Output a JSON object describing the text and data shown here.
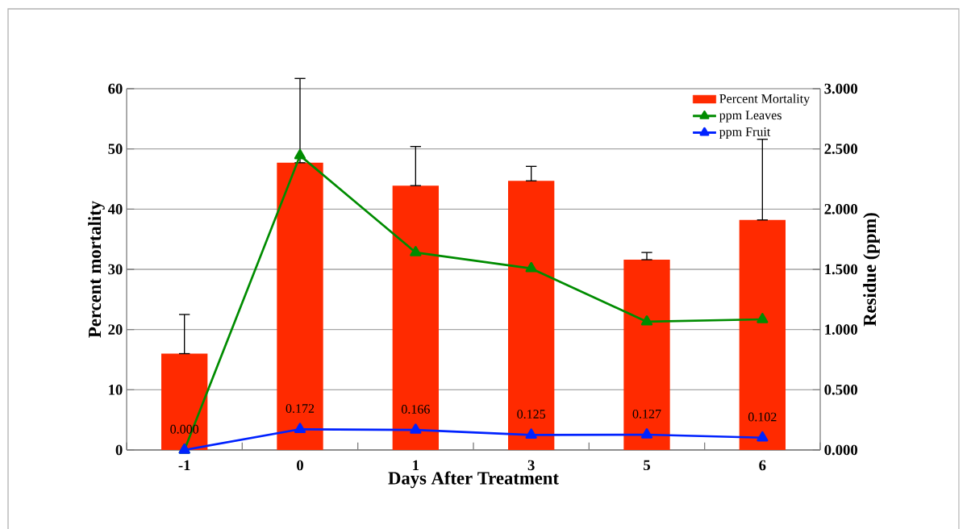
{
  "chart_data": {
    "type": "bar",
    "xlabel": "Days After Treatment",
    "ylabel": "Percent mortality",
    "y2label": "Residue  (ppm)",
    "categories": [
      "-1",
      "0",
      "1",
      "3",
      "5",
      "6"
    ],
    "series": [
      {
        "name": "Percent  Mortality",
        "color": "#ff2a00",
        "values": [
          16,
          47.7,
          43.9,
          44.7,
          31.6,
          38.2
        ],
        "errors": [
          [
            16,
            22.5
          ],
          [
            47.7,
            61.7
          ],
          [
            43.9,
            50.4
          ],
          [
            44.7,
            47.1
          ],
          [
            31.6,
            32.8
          ],
          [
            38.2,
            51.6
          ]
        ]
      },
      {
        "name": "ppm Leaves",
        "type": "line",
        "axis": "y2",
        "color": "#008c00",
        "values": [
          0,
          2.445,
          1.64,
          1.507,
          1.065,
          1.085
        ]
      },
      {
        "name": "ppm Fruit",
        "type": "line",
        "axis": "y2",
        "color": "#0022ff",
        "values": [
          0,
          0.172,
          0.166,
          0.125,
          0.127,
          0.102
        ],
        "value_labels": [
          "0.000",
          "0.172",
          "0.166",
          "0.125",
          "0.127",
          "0.102"
        ]
      }
    ],
    "ylim": [
      0,
      60
    ],
    "yticks": [
      0,
      10,
      20,
      30,
      40,
      50,
      60
    ],
    "y2lim": [
      0,
      3
    ],
    "y2ticks": [
      {
        "value": 0,
        "label": "0.000"
      },
      {
        "value": 0.5,
        "label": "0.500"
      },
      {
        "value": 1,
        "label": "1.000"
      },
      {
        "value": 1.5,
        "label": "1.500"
      },
      {
        "value": 2,
        "label": "2.000"
      },
      {
        "value": 2.5,
        "label": "2.500"
      },
      {
        "value": 3,
        "label": "3.000"
      }
    ],
    "grid": "y",
    "legend": "top right",
    "marker": "triangle"
  }
}
